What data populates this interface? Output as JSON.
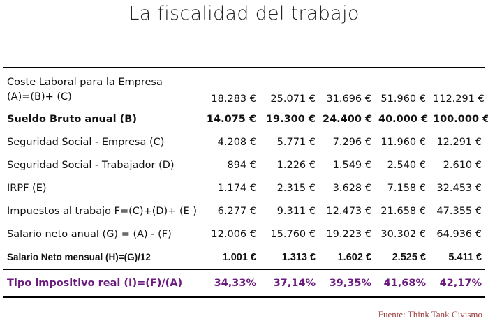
{
  "title": "La fiscalidad del trabajo",
  "table": {
    "rows": [
      {
        "label_line1": "Coste Laboral para la Empresa",
        "label_line2": "(A)=(B)+ (C)",
        "values": [
          "18.283 €",
          "25.071 €",
          "31.696 €",
          "51.960 €",
          "112.291 €"
        ]
      },
      {
        "label": "Sueldo Bruto anual (B)",
        "values": [
          "14.075 €",
          "19.300 €",
          "24.400 €",
          "40.000 €",
          "100.000 €"
        ]
      },
      {
        "label": "Seguridad Social - Empresa (C)",
        "values": [
          "4.208 €",
          "5.771 €",
          "7.296 €",
          "11.960 €",
          "12.291 €"
        ]
      },
      {
        "label": "Seguridad Social - Trabajador (D)",
        "values": [
          "894 €",
          "1.226 €",
          "1.549 €",
          "2.540 €",
          "2.610 €"
        ]
      },
      {
        "label": "IRPF (E)",
        "values": [
          "1.174 €",
          "2.315 €",
          "3.628 €",
          "7.158 €",
          "32.453 €"
        ]
      },
      {
        "label": "Impuestos al trabajo F=(C)+(D)+ (E )",
        "values": [
          "6.277 €",
          "9.311 €",
          "12.473 €",
          "21.658 €",
          "47.355 €"
        ]
      },
      {
        "label": "Salario neto anual (G) = (A) - (F)",
        "values": [
          "12.006 €",
          "15.760 €",
          "19.223 €",
          "30.302 €",
          "64.936 €"
        ]
      },
      {
        "label": "Salario Neto mensual (H)=(G)/12",
        "values": [
          "1.001 €",
          "1.313 €",
          "1.602 €",
          "2.525 €",
          "5.411 €"
        ]
      },
      {
        "label": "Tipo impositivo real (I)=(F)/(A)",
        "values": [
          "34,33%",
          "37,14%",
          "39,35%",
          "41,68%",
          "42,17%"
        ]
      }
    ]
  },
  "source": "Fuente: Think Tank Civismo",
  "colors": {
    "rate_row": "#6b1a7d",
    "source": "#9a3a3a"
  }
}
